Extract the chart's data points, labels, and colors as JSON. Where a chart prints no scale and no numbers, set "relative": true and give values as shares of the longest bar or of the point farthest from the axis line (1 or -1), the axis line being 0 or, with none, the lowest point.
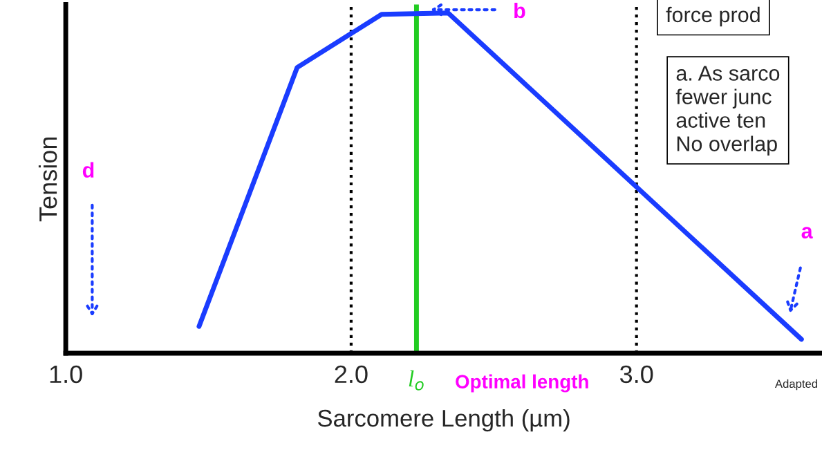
{
  "chart_data": {
    "type": "line",
    "xlabel": "Sarcomere Length (µm)",
    "ylabel": "Tension",
    "relative": true,
    "x": [
      1.467,
      1.811,
      2.107,
      2.34,
      3.578
    ],
    "series": [
      {
        "color": "#1a3cff",
        "values": [
          0.079,
          0.84,
          0.996,
          1,
          0.041
        ]
      }
    ],
    "xlim": [
      1.0,
      3.65
    ],
    "xticks": [
      {
        "value": 1.0,
        "label": "1.0"
      },
      {
        "value": 2.0,
        "label": "2.0"
      },
      {
        "value": 3.0,
        "label": "3.0"
      }
    ],
    "ref_lines": [
      {
        "axis": "x",
        "value": 2.0,
        "color": "#000000",
        "line_style": "dotted"
      },
      {
        "axis": "x",
        "value": 3.0,
        "color": "#000000",
        "line_style": "dotted"
      },
      {
        "axis": "x",
        "value": 2.229,
        "color": "#22cc22",
        "line_style": "solid",
        "label": "l$_{o}$"
      }
    ],
    "annotations": [
      {
        "text": "Optimal length",
        "x": 2.229,
        "y": 0
      },
      "d",
      "b",
      "a",
      "force prod",
      "a. As sarco\nfewer junc\nactive ten\nNo overlap",
      "Adapted"
    ],
    "grid": false,
    "legend": false,
    "marker": "none",
    "line_style": "solid"
  }
}
